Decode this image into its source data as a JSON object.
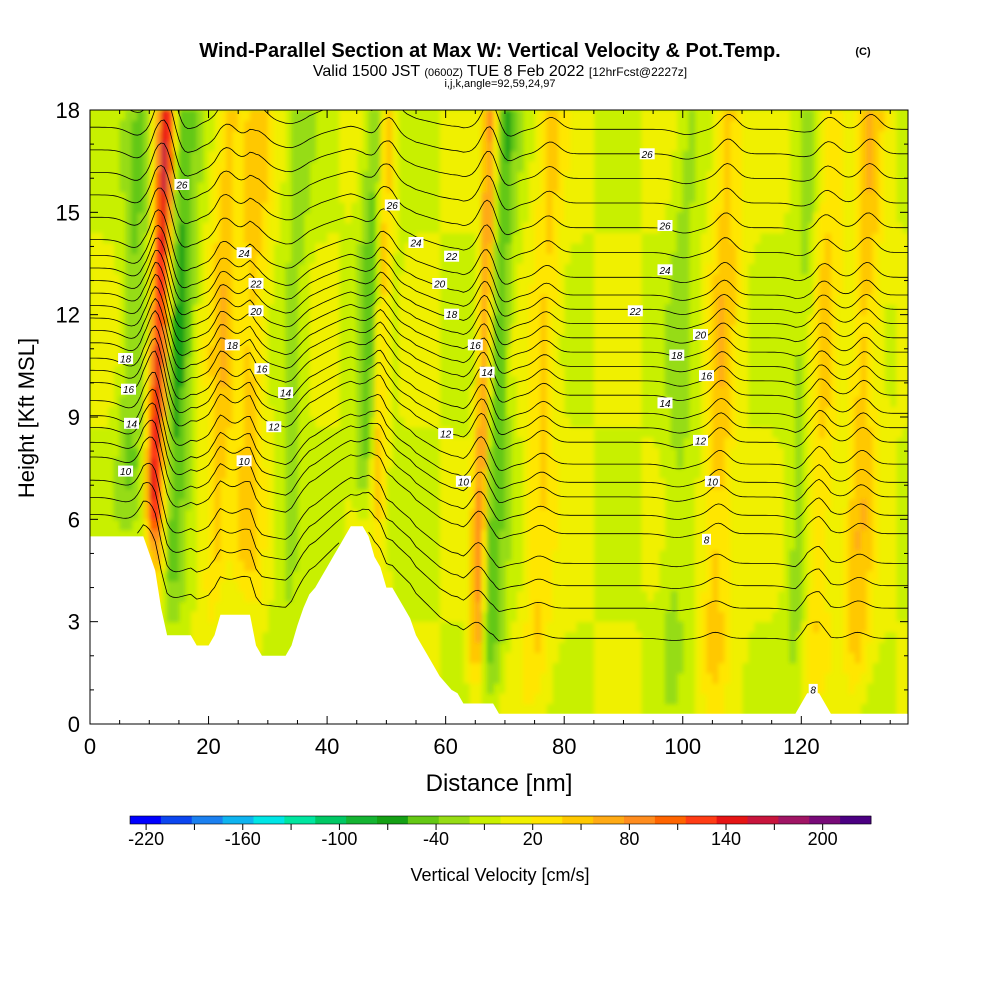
{
  "header": {
    "title_main": "Wind-Parallel Section at Max W: Vertical Velocity & Pot.Temp.",
    "title_mark": "(C)",
    "valid_prefix": "Valid 1500 JST",
    "valid_utc": "(0600Z)",
    "valid_date": "TUE 8 Feb 2022",
    "fcst_info": "[12hrFcst@2227z]",
    "grid_info": "i,j,k,angle=92,59,24,97"
  },
  "chart_data": {
    "type": "heatmap",
    "xlabel": "Distance [nm]",
    "ylabel": "Height [Kft MSL]",
    "xlim": [
      0,
      138
    ],
    "ylim": [
      0,
      18
    ],
    "x_ticks": [
      "0",
      "20",
      "40",
      "60",
      "80",
      "100",
      "120"
    ],
    "y_ticks": [
      "0",
      "3",
      "6",
      "9",
      "12",
      "15",
      "18"
    ],
    "colorbar": {
      "label": "Vertical Velocity [cm/s]",
      "range": [
        -230,
        230
      ],
      "tick_labels": [
        "-220",
        "-160",
        "-100",
        "-40",
        "20",
        "80",
        "140",
        "200"
      ],
      "colors": [
        "#0000ff",
        "#0c46f0",
        "#1b80f0",
        "#0fb4f0",
        "#00e6e6",
        "#00e6a0",
        "#00c864",
        "#14b432",
        "#14a014",
        "#64c814",
        "#96dc14",
        "#c8f000",
        "#f0f000",
        "#ffe600",
        "#ffc800",
        "#ffaa14",
        "#ff8c1e",
        "#ff6400",
        "#ff3c14",
        "#e61414",
        "#c8143c",
        "#a01464",
        "#780a78",
        "#4b0082"
      ]
    },
    "updraft_cores": [
      {
        "x": 10.5,
        "peak_cm_s": 160
      },
      {
        "x": 21,
        "peak_cm_s": 50
      },
      {
        "x": 26,
        "peak_cm_s": 45
      },
      {
        "x": 48,
        "peak_cm_s": 100
      },
      {
        "x": 65,
        "peak_cm_s": 120
      },
      {
        "x": 75,
        "peak_cm_s": 40
      },
      {
        "x": 105,
        "peak_cm_s": 50
      },
      {
        "x": 122,
        "peak_cm_s": 45
      },
      {
        "x": 129,
        "peak_cm_s": 50
      }
    ],
    "downdraft_cores": [
      {
        "x": 13.5,
        "peak_cm_s": -60
      },
      {
        "x": 6.5,
        "peak_cm_s": -40
      },
      {
        "x": 47,
        "peak_cm_s": -70
      },
      {
        "x": 66.5,
        "peak_cm_s": -70
      },
      {
        "x": 33,
        "peak_cm_s": -25
      },
      {
        "x": 98,
        "peak_cm_s": -25
      },
      {
        "x": 119,
        "peak_cm_s": -30
      }
    ],
    "terrain_kft": [
      [
        0,
        5.5
      ],
      [
        1,
        5.5
      ],
      [
        2,
        5.5
      ],
      [
        3,
        5.5
      ],
      [
        4,
        5.5
      ],
      [
        5,
        5.5
      ],
      [
        6,
        5.5
      ],
      [
        7,
        5.5
      ],
      [
        8,
        5.5
      ],
      [
        9,
        5.5
      ],
      [
        10,
        5
      ],
      [
        11,
        4.5
      ],
      [
        12,
        3.4
      ],
      [
        13,
        2.6
      ],
      [
        14,
        2.6
      ],
      [
        15,
        2.6
      ],
      [
        16,
        2.6
      ],
      [
        17,
        2.6
      ],
      [
        18,
        2.3
      ],
      [
        19,
        2.3
      ],
      [
        20,
        2.3
      ],
      [
        21,
        2.6
      ],
      [
        22,
        3.2
      ],
      [
        23,
        3.2
      ],
      [
        24,
        3.2
      ],
      [
        25,
        3.2
      ],
      [
        26,
        3.2
      ],
      [
        27,
        3.2
      ],
      [
        28,
        2.3
      ],
      [
        29,
        2.0
      ],
      [
        30,
        2.0
      ],
      [
        31,
        2.0
      ],
      [
        32,
        2.0
      ],
      [
        33,
        2.0
      ],
      [
        34,
        2.3
      ],
      [
        35,
        2.9
      ],
      [
        36,
        3.4
      ],
      [
        37,
        3.8
      ],
      [
        38,
        4.0
      ],
      [
        39,
        4.3
      ],
      [
        40,
        4.6
      ],
      [
        41,
        4.9
      ],
      [
        42,
        5.2
      ],
      [
        43,
        5.5
      ],
      [
        44,
        5.8
      ],
      [
        45,
        5.8
      ],
      [
        46,
        5.8
      ],
      [
        47,
        5.5
      ],
      [
        48,
        4.9
      ],
      [
        49,
        4.6
      ],
      [
        50,
        4.0
      ],
      [
        51,
        4.0
      ],
      [
        52,
        3.7
      ],
      [
        53,
        3.4
      ],
      [
        54,
        3.1
      ],
      [
        55,
        2.6
      ],
      [
        56,
        2.3
      ],
      [
        57,
        2.0
      ],
      [
        58,
        1.7
      ],
      [
        59,
        1.4
      ],
      [
        60,
        1.2
      ],
      [
        61,
        1.0
      ],
      [
        62,
        0.9
      ],
      [
        63,
        0.6
      ],
      [
        64,
        0.6
      ],
      [
        65,
        0.6
      ],
      [
        66,
        0.6
      ],
      [
        67,
        0.6
      ],
      [
        68,
        0.6
      ],
      [
        69,
        0.3
      ],
      [
        70,
        0.3
      ],
      [
        80,
        0.3
      ],
      [
        100,
        0.3
      ],
      [
        119,
        0.3
      ],
      [
        120,
        0.6
      ],
      [
        121,
        0.9
      ],
      [
        122,
        0.9
      ],
      [
        123,
        0.9
      ],
      [
        124,
        0.6
      ],
      [
        125,
        0.3
      ],
      [
        138,
        0.3
      ]
    ],
    "theta_contours": [
      {
        "label": "8",
        "base_kft": 3.6,
        "label_pos": [
          104,
          5.4
        ]
      },
      {
        "label": "8",
        "base_kft": 0.9,
        "label_pos": [
          122,
          1.0
        ]
      },
      {
        "label": "10",
        "base_kft": 6.4,
        "label_pos": [
          6,
          7.4
        ]
      },
      {
        "label": "10",
        "base_kft": 6.4,
        "label_pos": [
          26,
          7.7
        ]
      },
      {
        "label": "10",
        "base_kft": 6.4,
        "label_pos": [
          63,
          7.1
        ]
      },
      {
        "label": "10",
        "base_kft": 6.4,
        "label_pos": [
          105,
          7.1
        ]
      },
      {
        "label": "12",
        "base_kft": 7.8,
        "label_pos": [
          31,
          8.7
        ]
      },
      {
        "label": "12",
        "base_kft": 7.8,
        "label_pos": [
          60,
          8.5
        ]
      },
      {
        "label": "12",
        "base_kft": 7.8,
        "label_pos": [
          103,
          8.3
        ]
      },
      {
        "label": "14",
        "base_kft": 8.9,
        "label_pos": [
          7,
          8.8
        ]
      },
      {
        "label": "14",
        "base_kft": 8.9,
        "label_pos": [
          33,
          9.7
        ]
      },
      {
        "label": "14",
        "base_kft": 8.9,
        "label_pos": [
          67,
          10.3
        ]
      },
      {
        "label": "14",
        "base_kft": 8.9,
        "label_pos": [
          97,
          9.4
        ]
      },
      {
        "label": "16",
        "base_kft": 9.7,
        "label_pos": [
          6.5,
          9.8
        ]
      },
      {
        "label": "16",
        "base_kft": 9.7,
        "label_pos": [
          29,
          10.4
        ]
      },
      {
        "label": "16",
        "base_kft": 9.7,
        "label_pos": [
          65,
          11.1
        ]
      },
      {
        "label": "16",
        "base_kft": 9.7,
        "label_pos": [
          104,
          10.2
        ]
      },
      {
        "label": "18",
        "base_kft": 10.6,
        "label_pos": [
          6,
          10.7
        ]
      },
      {
        "label": "18",
        "base_kft": 10.6,
        "label_pos": [
          24,
          11.1
        ]
      },
      {
        "label": "18",
        "base_kft": 10.6,
        "label_pos": [
          61,
          12.0
        ]
      },
      {
        "label": "18",
        "base_kft": 10.6,
        "label_pos": [
          99,
          10.8
        ]
      },
      {
        "label": "20",
        "base_kft": 11.4,
        "label_pos": [
          28,
          12.1
        ]
      },
      {
        "label": "20",
        "base_kft": 11.4,
        "label_pos": [
          59,
          12.9
        ]
      },
      {
        "label": "20",
        "base_kft": 11.4,
        "label_pos": [
          103,
          11.4
        ]
      },
      {
        "label": "22",
        "base_kft": 12.2,
        "label_pos": [
          28,
          12.9
        ]
      },
      {
        "label": "22",
        "base_kft": 12.2,
        "label_pos": [
          61,
          13.7
        ]
      },
      {
        "label": "22",
        "base_kft": 12.2,
        "label_pos": [
          92,
          12.1
        ]
      },
      {
        "label": "24",
        "base_kft": 13.0,
        "label_pos": [
          26,
          13.8
        ]
      },
      {
        "label": "24",
        "base_kft": 13.0,
        "label_pos": [
          55,
          14.1
        ]
      },
      {
        "label": "24",
        "base_kft": 13.0,
        "label_pos": [
          97,
          13.3
        ]
      },
      {
        "label": "26",
        "base_kft": 14.2,
        "label_pos": [
          15.5,
          15.8
        ]
      },
      {
        "label": "26",
        "base_kft": 14.2,
        "label_pos": [
          51,
          15.2
        ]
      },
      {
        "label": "26",
        "base_kft": 14.2,
        "label_pos": [
          97,
          14.6
        ]
      },
      {
        "label": "26",
        "base_kft": 14.2,
        "label_pos": [
          94,
          16.7
        ]
      }
    ]
  }
}
